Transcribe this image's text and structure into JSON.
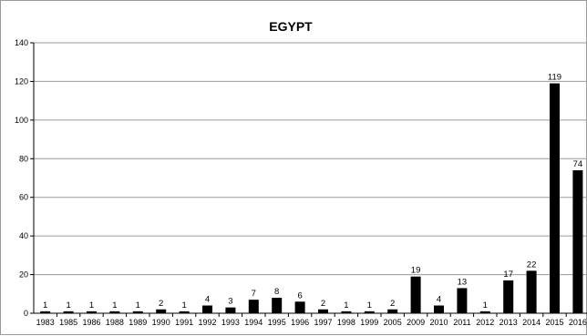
{
  "chart_data": {
    "type": "bar",
    "title": "EGYPT",
    "xlabel": "",
    "ylabel": "",
    "ylim": [
      0,
      140
    ],
    "yticks": [
      0,
      20,
      40,
      60,
      80,
      100,
      120,
      140
    ],
    "grid": true,
    "legend": "none",
    "bar_color": "#000000",
    "categories": [
      "1983",
      "1985",
      "1986",
      "1988",
      "1989",
      "1990",
      "1991",
      "1992",
      "1993",
      "1994",
      "1995",
      "1996",
      "1997",
      "1998",
      "1999",
      "2005",
      "2009",
      "2010",
      "2011",
      "2012",
      "2013",
      "2014",
      "2015",
      "2016"
    ],
    "values": [
      1,
      1,
      1,
      1,
      1,
      2,
      1,
      4,
      3,
      7,
      8,
      6,
      2,
      1,
      1,
      2,
      19,
      4,
      13,
      1,
      17,
      22,
      119,
      74
    ]
  }
}
